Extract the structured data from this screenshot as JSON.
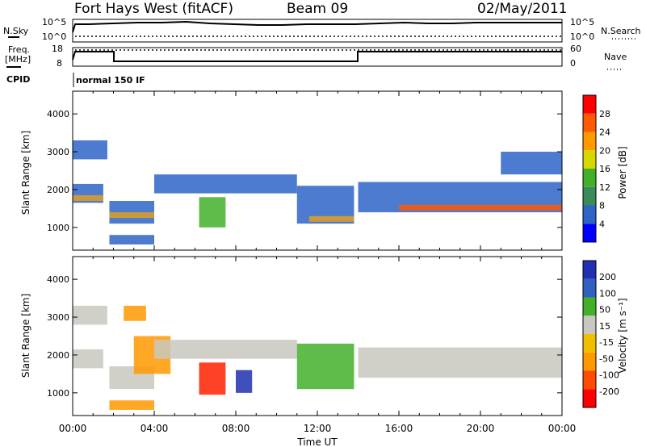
{
  "header": {
    "radar": "Fort Hays West (fitACF)",
    "beam": "Beam 09",
    "date": "02/May/2011"
  },
  "noise_panel": {
    "left_label": "N.Sky",
    "right_label": "N.Search",
    "left_ticks": [
      "10^5",
      "10^0"
    ],
    "right_ticks": [
      "10^5",
      "10^0"
    ]
  },
  "freq_panel": {
    "left_label_1": "Freq.",
    "left_label_2": "[MHz]",
    "right_label": "Nave",
    "left_ticks": [
      "18",
      "8"
    ],
    "right_ticks": [
      "60",
      "0"
    ]
  },
  "cpid": {
    "label": "CPID",
    "value": "normal 150 IF"
  },
  "chart_data": [
    {
      "type": "heatmap",
      "name": "power",
      "ylabel": "Slant Range [km]",
      "xlabel": "Time UT",
      "ylim": [
        400,
        4600
      ],
      "y_ticks": [
        "1000",
        "2000",
        "3000",
        "4000"
      ],
      "colorbar_label": "Power [dB]",
      "colorbar_ticks": [
        "28",
        "24",
        "20",
        "16",
        "12",
        "8",
        "4"
      ],
      "colorbar_colors": [
        "#0000ff",
        "#2d64c8",
        "#3b8a5a",
        "#43b02a",
        "#d7d700",
        "#ff9900",
        "#ff5a00",
        "#ff0000"
      ],
      "bands": [
        {
          "t0": 0.0,
          "t1": 1.5,
          "r0": 1650,
          "r1": 2150,
          "color": "#2d64c8"
        },
        {
          "t0": 0.0,
          "t1": 1.5,
          "r0": 1700,
          "r1": 1850,
          "color": "#e0a020"
        },
        {
          "t0": 0.0,
          "t1": 1.7,
          "r0": 2800,
          "r1": 3300,
          "color": "#2d64c8"
        },
        {
          "t0": 1.8,
          "t1": 4.0,
          "r0": 1100,
          "r1": 1700,
          "color": "#2d64c8"
        },
        {
          "t0": 1.8,
          "t1": 4.0,
          "r0": 1250,
          "r1": 1400,
          "color": "#e0a020"
        },
        {
          "t0": 1.8,
          "t1": 4.0,
          "r0": 550,
          "r1": 800,
          "color": "#2d64c8"
        },
        {
          "t0": 4.0,
          "t1": 11.0,
          "r0": 1900,
          "r1": 2400,
          "color": "#2d64c8"
        },
        {
          "t0": 6.2,
          "t1": 7.5,
          "r0": 1000,
          "r1": 1800,
          "color": "#43b02a"
        },
        {
          "t0": 11.0,
          "t1": 13.8,
          "r0": 1100,
          "r1": 2100,
          "color": "#2d64c8"
        },
        {
          "t0": 11.6,
          "t1": 13.8,
          "r0": 1150,
          "r1": 1300,
          "color": "#e0a020"
        },
        {
          "t0": 14.0,
          "t1": 24.0,
          "r0": 1400,
          "r1": 2200,
          "color": "#2d64c8"
        },
        {
          "t0": 16.0,
          "t1": 24.0,
          "r0": 1450,
          "r1": 1600,
          "color": "#ff5a00"
        },
        {
          "t0": 21.0,
          "t1": 24.0,
          "r0": 2400,
          "r1": 3000,
          "color": "#2d64c8"
        }
      ]
    },
    {
      "type": "heatmap",
      "name": "velocity",
      "ylabel": "Slant Range [km]",
      "xlabel": "Time UT",
      "ylim": [
        400,
        4600
      ],
      "y_ticks": [
        "1000",
        "2000",
        "3000",
        "4000"
      ],
      "colorbar_label": "Velocity [m s⁻¹]",
      "colorbar_ticks": [
        "200",
        "100",
        "50",
        "15",
        "-15",
        "-50",
        "-100",
        "-200"
      ],
      "colorbar_colors": [
        "#ff0000",
        "#ff4a00",
        "#ff9900",
        "#f0c000",
        "#c8c8c0",
        "#43b02a",
        "#3060c0",
        "#2030b0"
      ],
      "bands": [
        {
          "t0": 0.0,
          "t1": 1.5,
          "r0": 1650,
          "r1": 2150,
          "color": "#c8c8c0"
        },
        {
          "t0": 0.0,
          "t1": 1.7,
          "r0": 2800,
          "r1": 3300,
          "color": "#c8c8c0"
        },
        {
          "t0": 1.8,
          "t1": 4.0,
          "r0": 1100,
          "r1": 1700,
          "color": "#c8c8c0"
        },
        {
          "t0": 1.8,
          "t1": 4.0,
          "r0": 550,
          "r1": 800,
          "color": "#ff9900"
        },
        {
          "t0": 3.0,
          "t1": 4.8,
          "r0": 1500,
          "r1": 2500,
          "color": "#ff9900"
        },
        {
          "t0": 4.0,
          "t1": 11.0,
          "r0": 1900,
          "r1": 2400,
          "color": "#c8c8c0"
        },
        {
          "t0": 6.2,
          "t1": 7.5,
          "r0": 950,
          "r1": 1800,
          "color": "#ff2000"
        },
        {
          "t0": 8.0,
          "t1": 8.8,
          "r0": 1000,
          "r1": 1600,
          "color": "#2030b0"
        },
        {
          "t0": 11.0,
          "t1": 13.8,
          "r0": 1100,
          "r1": 2300,
          "color": "#43b02a"
        },
        {
          "t0": 14.0,
          "t1": 24.0,
          "r0": 1400,
          "r1": 2200,
          "color": "#c8c8c0"
        },
        {
          "t0": 2.5,
          "t1": 3.6,
          "r0": 2900,
          "r1": 3300,
          "color": "#ff9900"
        }
      ]
    }
  ],
  "x_axis": {
    "title": "Time UT",
    "ticks": [
      "00:00",
      "04:00",
      "08:00",
      "12:00",
      "16:00",
      "20:00",
      "00:00"
    ]
  }
}
